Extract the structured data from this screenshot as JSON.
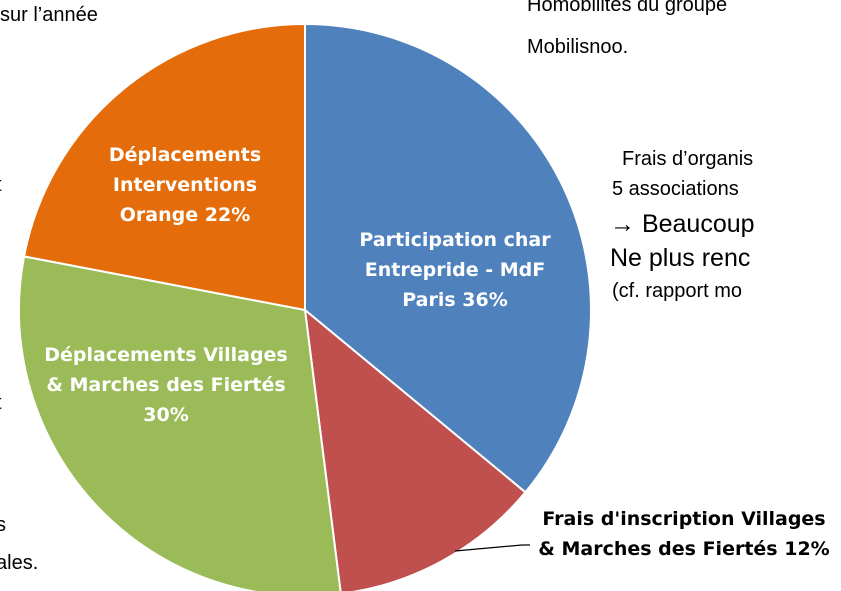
{
  "chart_data": {
    "type": "pie",
    "categories": [
      "Participation char Entrepride - MdF Paris",
      "Frais d'inscription Villages & Marches des Fiertés",
      "Déplacements Villages & Marches des Fiertés",
      "Déplacements Interventions Orange"
    ],
    "values": [
      36,
      12,
      30,
      22
    ],
    "value_labels": [
      "36%",
      "12%",
      "30%",
      "22%"
    ],
    "colors": [
      "#4f81bd",
      "#c0504d",
      "#9bbb59",
      "#e46c0a"
    ]
  },
  "slide_text": [
    "sur l’année",
    "t",
    "t",
    "s",
    "ales.",
    "Homobilités du groupe",
    "Mobilisnoo.",
    "Frais d’organis",
    "5 associations",
    "→ Beaucoup",
    "Ne plus renc",
    "(cf. rapport mo"
  ]
}
